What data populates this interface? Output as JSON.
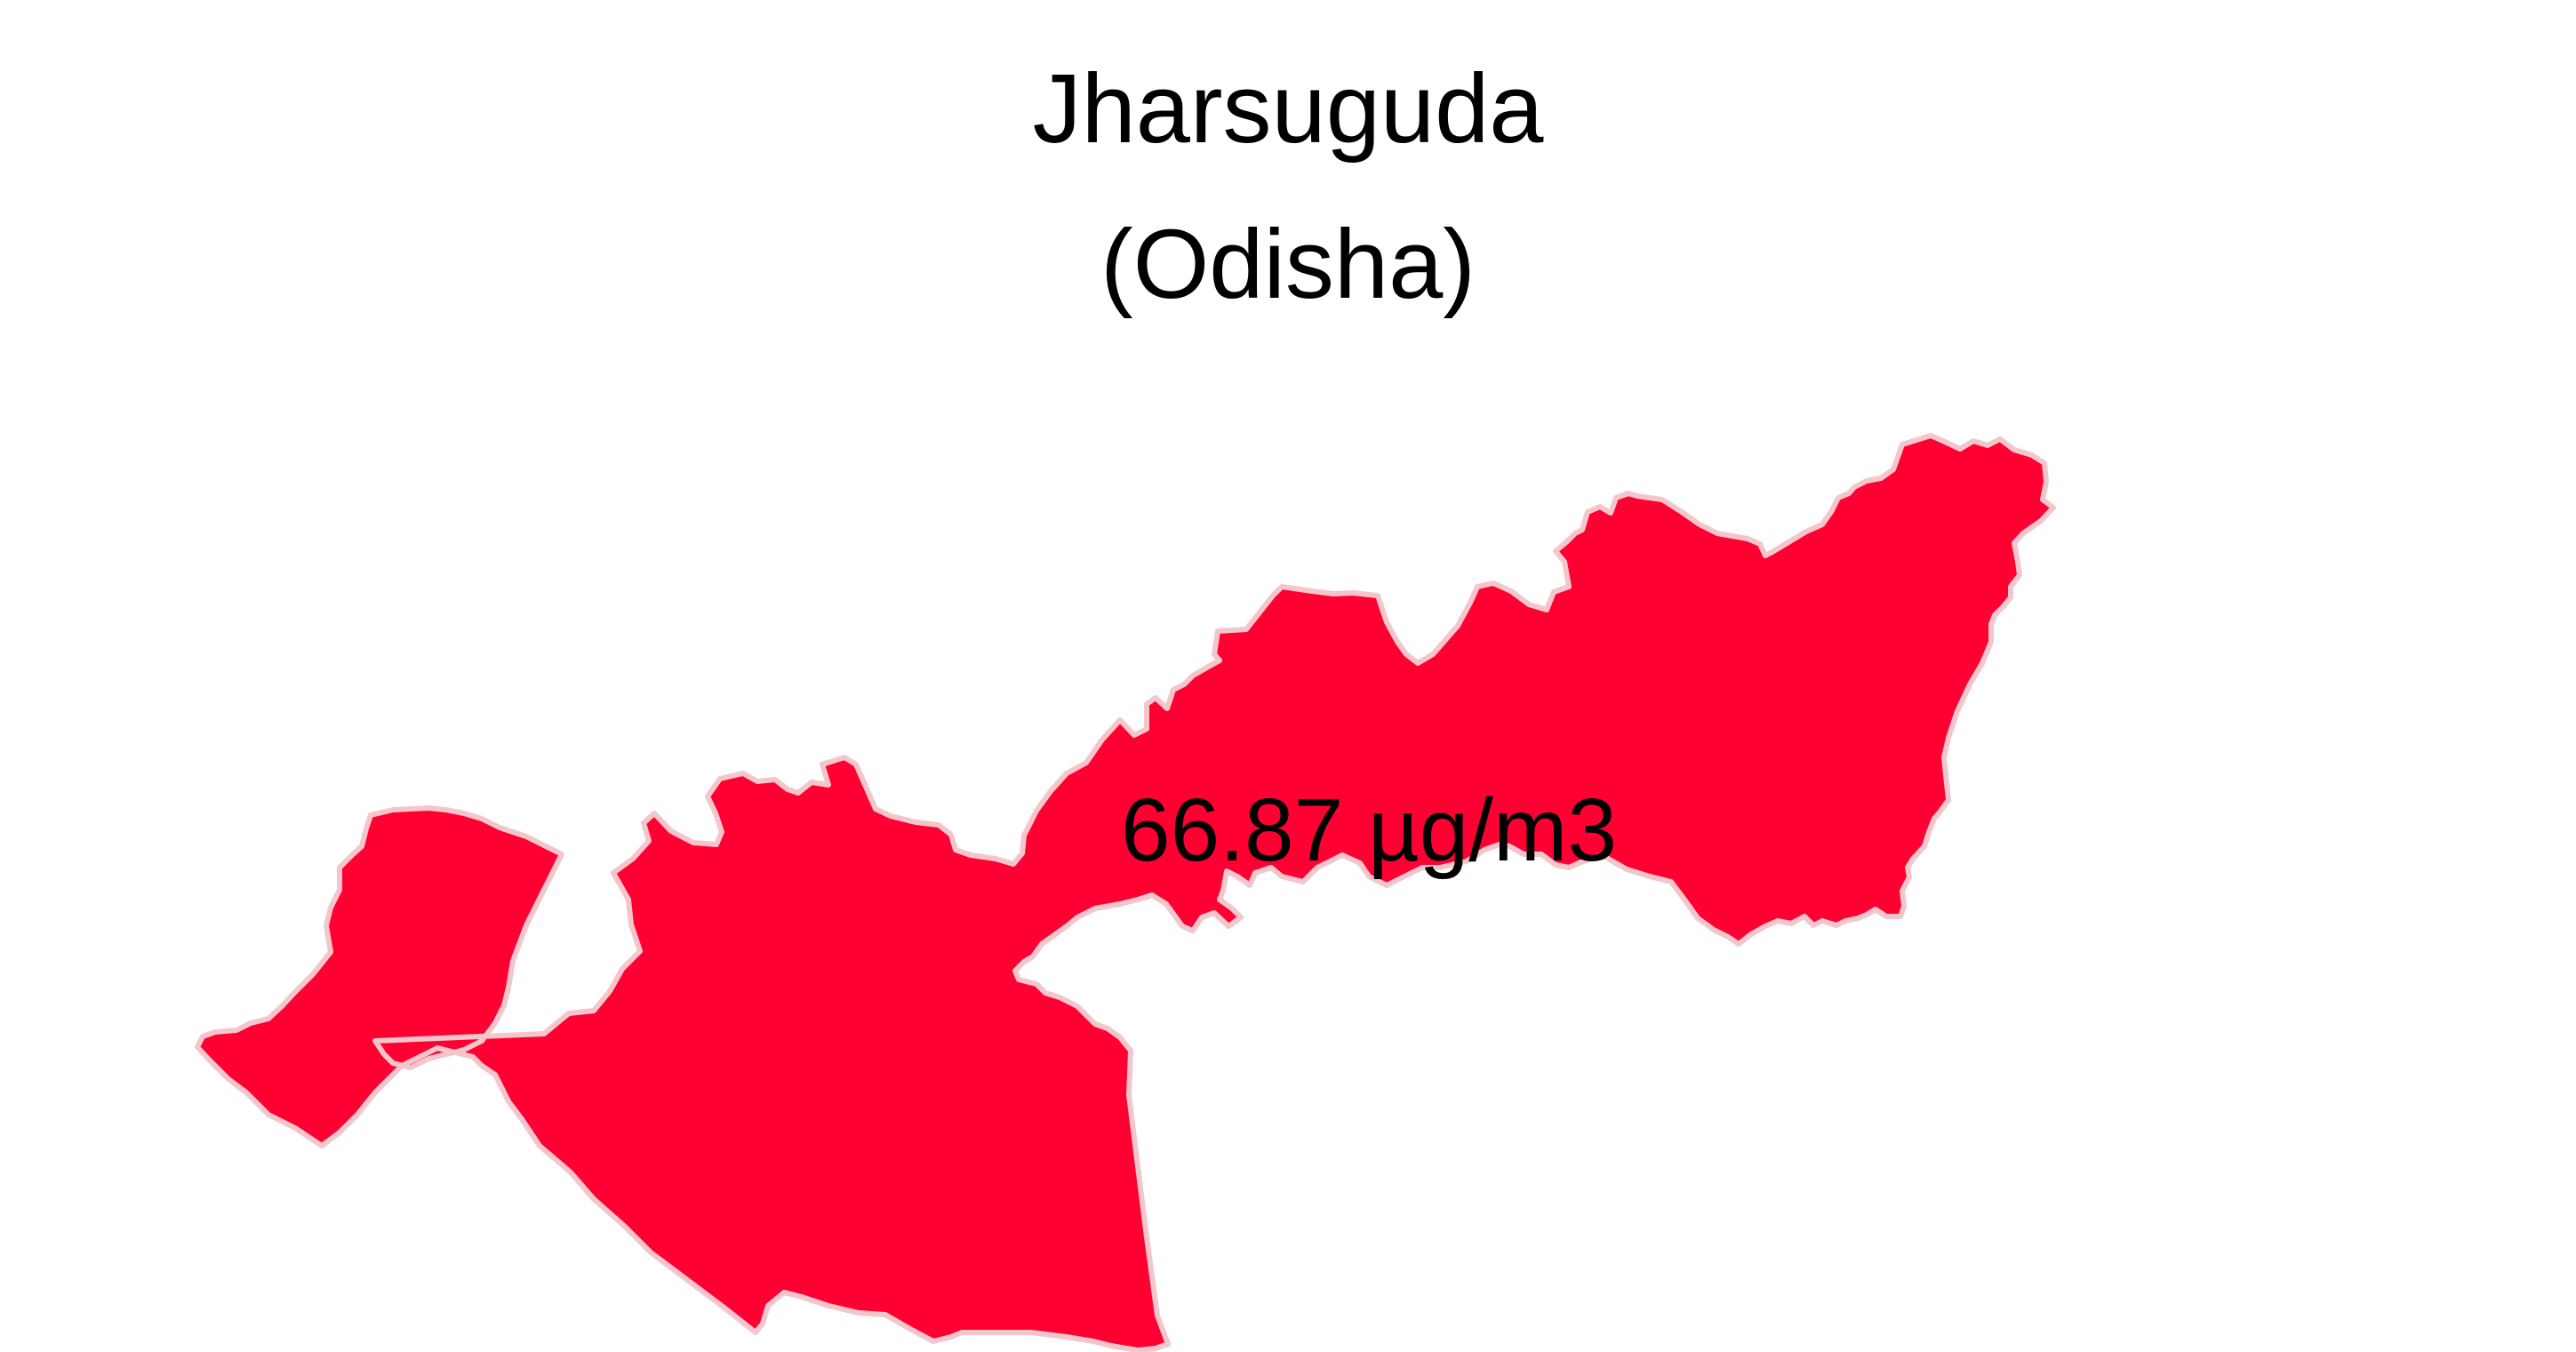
{
  "map": {
    "title": "Jharsuguda",
    "subtitle": "(Odisha)",
    "value_label": "66.87 µg/m3",
    "region_fill": "#FF0033",
    "region_stroke": "#F4C6CC",
    "background": "#FFFFFF"
  }
}
